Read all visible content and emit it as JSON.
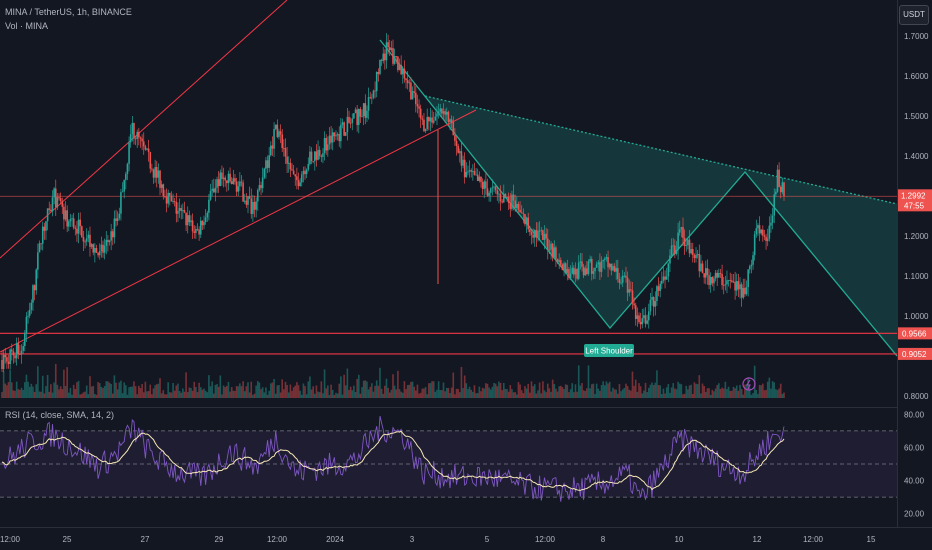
{
  "header": {
    "symbol_line": "MINA / TetherUS, 1h, BINANCE",
    "volume_line": "Vol · MINA",
    "currency_button": "USDT"
  },
  "rsi_header": "RSI (14, close, SMA, 14, 2)",
  "annotations": {
    "left_shoulder": "Left Shoulder",
    "current_price": "1.2992",
    "countdown": "47:55",
    "support_1": "0.9566",
    "support_2": "0.9052"
  },
  "colors": {
    "up": "#26a69a",
    "down": "#ef5350",
    "rsi_line": "#7e57c2",
    "rsi_ma": "#f7e7b7",
    "pattern": "#22ab94",
    "channel": "#f23645"
  },
  "chart_data": [
    {
      "type": "candlestick",
      "title": "MINA / TetherUS, 1h, BINANCE",
      "y_ticks": [
        "1.7000",
        "1.6000",
        "1.5000",
        "1.4000",
        "1.3000",
        "1.2000",
        "1.1000",
        "1.0000",
        "0.9000",
        "0.8000"
      ],
      "ylim": [
        0.8,
        1.7
      ],
      "x_ticks": [
        "12:00",
        "25",
        "27",
        "29",
        "12:00",
        "2024",
        "3",
        "5",
        "12:00",
        "8",
        "10",
        "12",
        "12:00",
        "15"
      ],
      "close_anchors": [
        {
          "x": "24 00:00",
          "y": 0.89
        },
        {
          "x": "24 12:00",
          "y": 0.92
        },
        {
          "x": "24 20:00",
          "y": 1.08
        },
        {
          "x": "25 00:00",
          "y": 1.2
        },
        {
          "x": "25 08:00",
          "y": 1.3
        },
        {
          "x": "25 16:00",
          "y": 1.24
        },
        {
          "x": "26 00:00",
          "y": 1.22
        },
        {
          "x": "26 12:00",
          "y": 1.15
        },
        {
          "x": "26 20:00",
          "y": 1.21
        },
        {
          "x": "27 00:00",
          "y": 1.27
        },
        {
          "x": "27 08:00",
          "y": 1.47
        },
        {
          "x": "27 18:00",
          "y": 1.39
        },
        {
          "x": "28 08:00",
          "y": 1.28
        },
        {
          "x": "29 00:00",
          "y": 1.21
        },
        {
          "x": "29 12:00",
          "y": 1.34
        },
        {
          "x": "30 00:00",
          "y": 1.33
        },
        {
          "x": "30 10:00",
          "y": 1.27
        },
        {
          "x": "30 20:00",
          "y": 1.4
        },
        {
          "x": "31 00:00",
          "y": 1.48
        },
        {
          "x": "31 12:00",
          "y": 1.33
        },
        {
          "x": "31 20:00",
          "y": 1.39
        },
        {
          "x": "1 08:00",
          "y": 1.52
        },
        {
          "x": "1 20:00",
          "y": 1.67
        },
        {
          "x": "2 08:00",
          "y": 1.6
        },
        {
          "x": "2 18:00",
          "y": 1.48
        },
        {
          "x": "3 08:00",
          "y": 1.52
        },
        {
          "x": "3 20:00",
          "y": 1.36
        },
        {
          "x": "4 12:00",
          "y": 1.31
        },
        {
          "x": "5 00:00",
          "y": 1.29
        },
        {
          "x": "5 12:00",
          "y": 1.22
        },
        {
          "x": "6 00:00",
          "y": 1.18
        },
        {
          "x": "6 12:00",
          "y": 1.11
        },
        {
          "x": "7 00:00",
          "y": 1.12
        },
        {
          "x": "7 12:00",
          "y": 1.13
        },
        {
          "x": "8 00:00",
          "y": 1.07
        },
        {
          "x": "8 08:00",
          "y": 0.97
        },
        {
          "x": "8 16:00",
          "y": 1.04
        },
        {
          "x": "9 00:00",
          "y": 1.12
        },
        {
          "x": "9 08:00",
          "y": 1.21
        },
        {
          "x": "9 16:00",
          "y": 1.16
        },
        {
          "x": "10 00:00",
          "y": 1.1
        },
        {
          "x": "10 12:00",
          "y": 1.09
        },
        {
          "x": "11 00:00",
          "y": 1.06
        },
        {
          "x": "11 08:00",
          "y": 1.23
        },
        {
          "x": "11 14:00",
          "y": 1.19
        },
        {
          "x": "11 20:00",
          "y": 1.35
        },
        {
          "x": "12 00:00",
          "y": 1.3
        }
      ],
      "current_price": 1.2992,
      "horizontal_levels": [
        0.9566,
        0.9052
      ],
      "pattern_label": "Left Shoulder",
      "legend": "none",
      "grid": false
    },
    {
      "type": "line",
      "title": "RSI (14, close, SMA, 14, 2)",
      "y_ticks": [
        "80.00",
        "60.00",
        "40.00",
        "20.00"
      ],
      "ylim": [
        18,
        82
      ],
      "bands": [
        70,
        50,
        30
      ],
      "rsi_anchors": [
        {
          "x": "24 00:00",
          "y": 50
        },
        {
          "x": "24 16:00",
          "y": 62
        },
        {
          "x": "25 06:00",
          "y": 68
        },
        {
          "x": "25 20:00",
          "y": 60
        },
        {
          "x": "26 12:00",
          "y": 48
        },
        {
          "x": "27 00:00",
          "y": 58
        },
        {
          "x": "27 08:00",
          "y": 72
        },
        {
          "x": "27 20:00",
          "y": 55
        },
        {
          "x": "28 12:00",
          "y": 45
        },
        {
          "x": "29 04:00",
          "y": 42
        },
        {
          "x": "29 20:00",
          "y": 58
        },
        {
          "x": "30 12:00",
          "y": 48
        },
        {
          "x": "31 00:00",
          "y": 66
        },
        {
          "x": "31 12:00",
          "y": 45
        },
        {
          "x": "1 00:00",
          "y": 52
        },
        {
          "x": "1 16:00",
          "y": 72
        },
        {
          "x": "2 06:00",
          "y": 68
        },
        {
          "x": "2 18:00",
          "y": 45
        },
        {
          "x": "3 12:00",
          "y": 42
        },
        {
          "x": "4 12:00",
          "y": 42
        },
        {
          "x": "5 12:00",
          "y": 36
        },
        {
          "x": "6 12:00",
          "y": 34
        },
        {
          "x": "7 08:00",
          "y": 38
        },
        {
          "x": "8 00:00",
          "y": 44
        },
        {
          "x": "8 08:00",
          "y": 28
        },
        {
          "x": "8 20:00",
          "y": 45
        },
        {
          "x": "9 08:00",
          "y": 65
        },
        {
          "x": "9 20:00",
          "y": 58
        },
        {
          "x": "10 12:00",
          "y": 48
        },
        {
          "x": "11 00:00",
          "y": 45
        },
        {
          "x": "11 12:00",
          "y": 62
        },
        {
          "x": "11 22:00",
          "y": 70
        },
        {
          "x": "12 00:00",
          "y": 66
        }
      ]
    }
  ]
}
